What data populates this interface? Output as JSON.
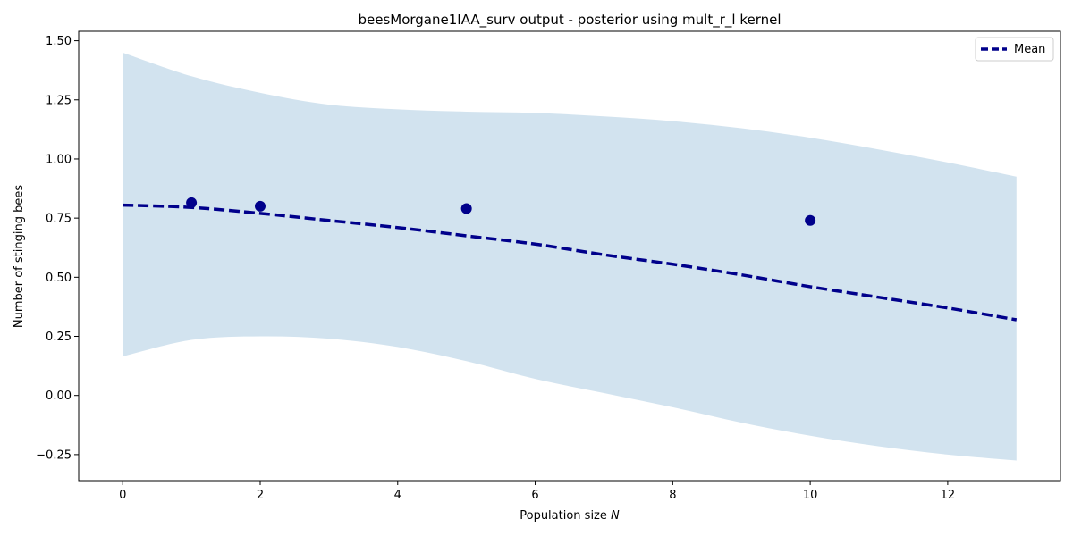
{
  "chart_data": {
    "type": "line",
    "title": "beesMorgane1IAA_surv output - posterior using mult_r_l kernel",
    "xlabel": "Population size",
    "xlabel_symbol": "N",
    "ylabel": "Number of stinging bees",
    "xlim": [
      -0.64,
      13.64
    ],
    "ylim": [
      -0.36,
      1.54
    ],
    "x_ticks": [
      0,
      2,
      4,
      6,
      8,
      10,
      12
    ],
    "x_tick_labels": [
      "0",
      "2",
      "4",
      "6",
      "8",
      "10",
      "12"
    ],
    "y_ticks": [
      -0.25,
      0.0,
      0.25,
      0.5,
      0.75,
      1.0,
      1.25,
      1.5
    ],
    "y_tick_labels": [
      "−0.25",
      "0.00",
      "0.25",
      "0.50",
      "0.75",
      "1.00",
      "1.25",
      "1.50"
    ],
    "grid": false,
    "legend": {
      "position": "top-right",
      "entries": [
        "Mean"
      ]
    },
    "series": [
      {
        "name": "Mean",
        "kind": "line",
        "style": "dashed",
        "color": "#00008b",
        "x": [
          0,
          1,
          2,
          3,
          4,
          5,
          6,
          7,
          8,
          9,
          10,
          11,
          12,
          13
        ],
        "y": [
          0.805,
          0.795,
          0.77,
          0.74,
          0.71,
          0.675,
          0.64,
          0.595,
          0.555,
          0.51,
          0.46,
          0.415,
          0.37,
          0.32
        ]
      },
      {
        "kind": "band",
        "color": "#a6c8e0",
        "x": [
          0,
          1,
          2,
          3,
          4,
          5,
          6,
          7,
          8,
          9,
          10,
          11,
          12,
          13
        ],
        "upper": [
          1.45,
          1.35,
          1.28,
          1.23,
          1.21,
          1.2,
          1.195,
          1.18,
          1.16,
          1.13,
          1.09,
          1.04,
          0.985,
          0.925
        ],
        "lower": [
          0.165,
          0.235,
          0.25,
          0.24,
          0.205,
          0.145,
          0.07,
          0.01,
          -0.05,
          -0.115,
          -0.17,
          -0.215,
          -0.25,
          -0.275
        ]
      },
      {
        "kind": "scatter",
        "color": "#00008b",
        "x": [
          1,
          2,
          5,
          10
        ],
        "y": [
          0.815,
          0.8,
          0.79,
          0.74
        ]
      }
    ]
  }
}
